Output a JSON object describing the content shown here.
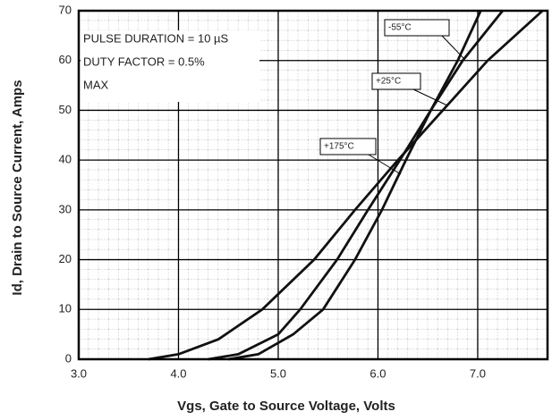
{
  "chart_data": {
    "type": "line",
    "xlabel": "Vgs, Gate to Source Voltage, Volts",
    "ylabel": "Id, Drain to Source Current, Amps",
    "annotations": [
      "PULSE DURATION = 10 µS",
      "DUTY FACTOR = 0.5%",
      "MAX"
    ],
    "xlim": [
      3,
      7.7
    ],
    "ylim": [
      0,
      70
    ],
    "xticks": [
      {
        "value": 3,
        "label": "3.0"
      },
      {
        "value": 4,
        "label": "4.0"
      },
      {
        "value": 5,
        "label": "5.0"
      },
      {
        "value": 6,
        "label": "6.0"
      },
      {
        "value": 7,
        "label": "7.0"
      }
    ],
    "yticks": [
      0,
      10,
      20,
      30,
      40,
      50,
      60,
      70
    ],
    "grid": true,
    "series": [
      {
        "name": "-55°C",
        "color": "#111111",
        "x": [
          4.5,
          4.8,
          5.15,
          5.45,
          5.77,
          6.04,
          6.28,
          6.53,
          6.8,
          7.03
        ],
        "values": [
          0,
          1,
          5,
          10,
          20,
          30,
          40,
          50,
          60,
          70
        ]
      },
      {
        "name": "+25°C",
        "color": "#111111",
        "x": [
          4.3,
          4.6,
          5.0,
          5.22,
          5.59,
          5.9,
          6.22,
          6.53,
          6.85,
          7.25
        ],
        "values": [
          0,
          1,
          5,
          10,
          20,
          30,
          40,
          50,
          60,
          70
        ]
      },
      {
        "name": "+175°C",
        "color": "#111111",
        "x": [
          3.7,
          4.0,
          4.4,
          4.84,
          5.36,
          5.77,
          6.2,
          6.65,
          7.1,
          7.65
        ],
        "values": [
          0,
          1,
          4,
          10,
          20,
          30,
          40,
          50,
          60,
          70
        ]
      }
    ]
  }
}
